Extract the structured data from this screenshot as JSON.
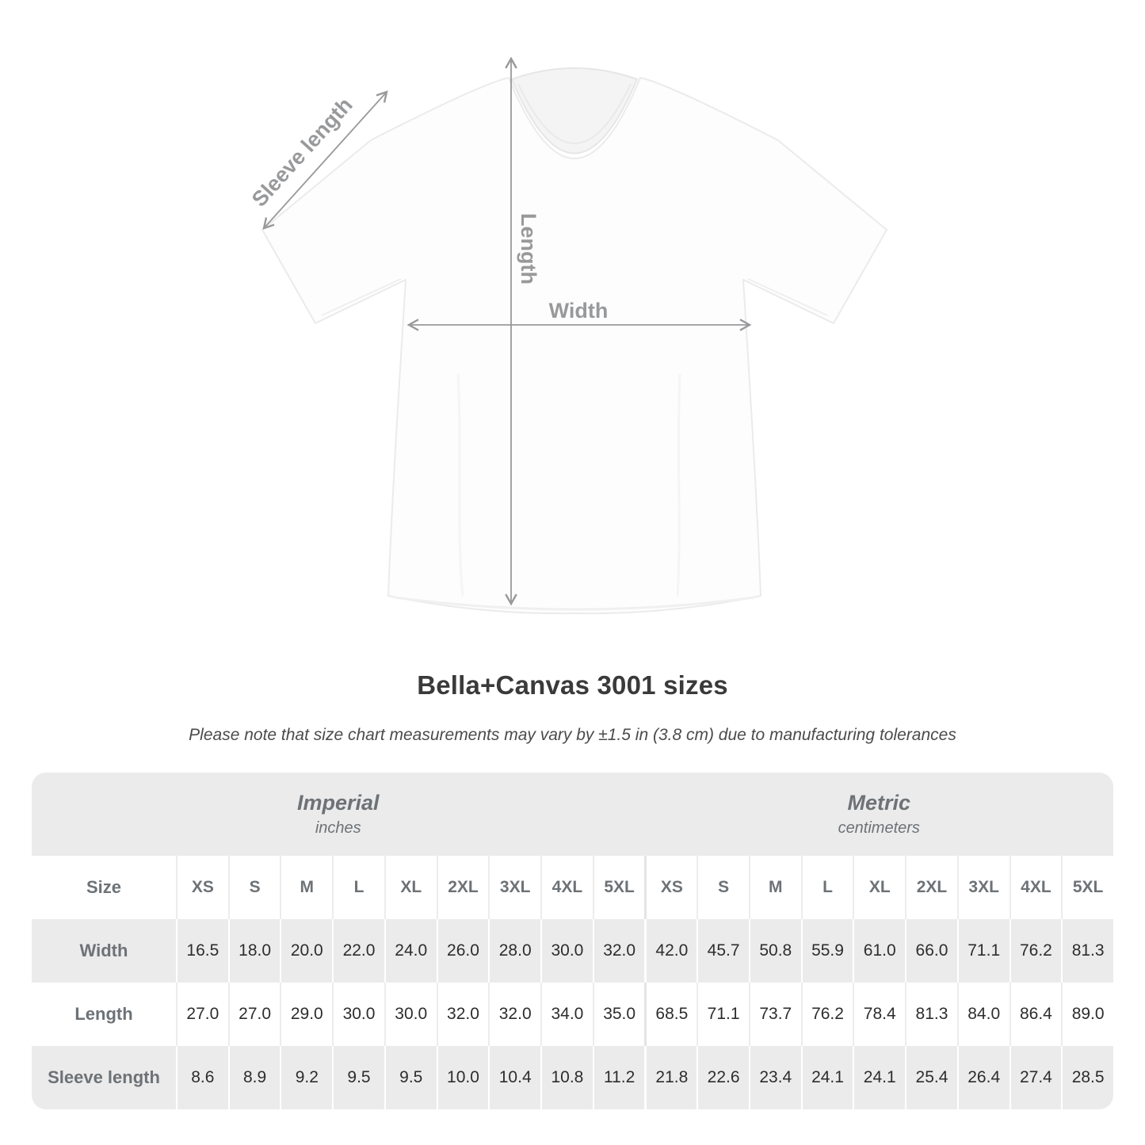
{
  "title": "Bella+Canvas 3001 sizes",
  "subtitle": "Please note that size chart measurements may vary by ±1.5 in (3.8 cm) due to manufacturing tolerances",
  "figure": {
    "labels": {
      "sleeve": "Sleeve length",
      "length": "Length",
      "width": "Width"
    }
  },
  "table": {
    "sections": [
      {
        "label": "Imperial",
        "unit": "inches"
      },
      {
        "label": "Metric",
        "unit": "centimeters"
      }
    ],
    "corner_label": "Size",
    "sizes": [
      "XS",
      "S",
      "M",
      "L",
      "XL",
      "2XL",
      "3XL",
      "4XL",
      "5XL"
    ],
    "rows": [
      {
        "label": "Width",
        "imperial": [
          "16.5",
          "18.0",
          "20.0",
          "22.0",
          "24.0",
          "26.0",
          "28.0",
          "30.0",
          "32.0"
        ],
        "metric": [
          "42.0",
          "45.7",
          "50.8",
          "55.9",
          "61.0",
          "66.0",
          "71.1",
          "76.2",
          "81.3"
        ]
      },
      {
        "label": "Length",
        "imperial": [
          "27.0",
          "27.0",
          "29.0",
          "30.0",
          "30.0",
          "32.0",
          "32.0",
          "34.0",
          "35.0"
        ],
        "metric": [
          "68.5",
          "71.1",
          "73.7",
          "76.2",
          "78.4",
          "81.3",
          "84.0",
          "86.4",
          "89.0"
        ]
      },
      {
        "label": "Sleeve length",
        "imperial": [
          "8.6",
          "8.9",
          "9.2",
          "9.5",
          "9.5",
          "10.0",
          "10.4",
          "10.8",
          "11.2"
        ],
        "metric": [
          "21.8",
          "22.6",
          "23.4",
          "24.1",
          "24.1",
          "25.4",
          "26.4",
          "27.4",
          "28.5"
        ]
      }
    ]
  },
  "colors": {
    "band_bg": "#ebebeb",
    "alt_row_bg": "#ebebeb",
    "header_text": "#6d7276",
    "value_text": "#2d2d2d",
    "arrow_gray": "#98999b",
    "title_text": "#3a3a3a",
    "subtitle_text": "#4b4b4b"
  },
  "chart_data": {
    "type": "table",
    "title": "Bella+Canvas 3001 sizes",
    "note": "Please note that size chart measurements may vary by ±1.5 in (3.8 cm) due to manufacturing tolerances",
    "columns": [
      "XS",
      "S",
      "M",
      "L",
      "XL",
      "2XL",
      "3XL",
      "4XL",
      "5XL"
    ],
    "series": [
      {
        "name": "Width (inches)",
        "values": [
          16.5,
          18.0,
          20.0,
          22.0,
          24.0,
          26.0,
          28.0,
          30.0,
          32.0
        ]
      },
      {
        "name": "Length (inches)",
        "values": [
          27.0,
          27.0,
          29.0,
          30.0,
          30.0,
          32.0,
          32.0,
          34.0,
          35.0
        ]
      },
      {
        "name": "Sleeve length (inches)",
        "values": [
          8.6,
          8.9,
          9.2,
          9.5,
          9.5,
          10.0,
          10.4,
          10.8,
          11.2
        ]
      },
      {
        "name": "Width (centimeters)",
        "values": [
          42.0,
          45.7,
          50.8,
          55.9,
          61.0,
          66.0,
          71.1,
          76.2,
          81.3
        ]
      },
      {
        "name": "Length (centimeters)",
        "values": [
          68.5,
          71.1,
          73.7,
          76.2,
          78.4,
          81.3,
          84.0,
          86.4,
          89.0
        ]
      },
      {
        "name": "Sleeve length (centimeters)",
        "values": [
          21.8,
          22.6,
          23.4,
          24.1,
          24.1,
          25.4,
          26.4,
          27.4,
          28.5
        ]
      }
    ]
  }
}
